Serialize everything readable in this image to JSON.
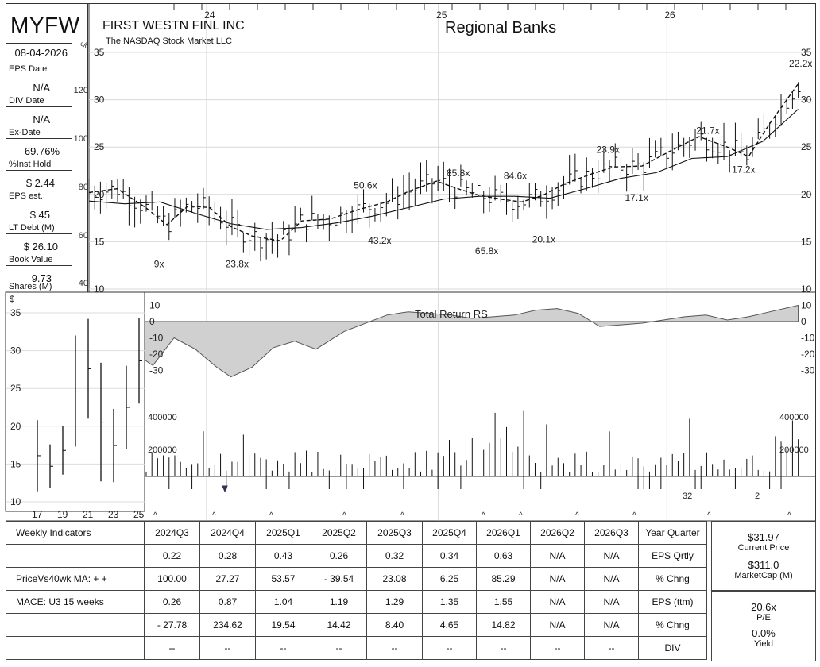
{
  "header": {
    "ticker": "MYFW",
    "company": "FIRST WESTN FINL INC",
    "exchange": "The NASDAQ Stock Market LLC",
    "industry": "Regional Banks"
  },
  "left_panel": [
    {
      "value": "08-04-2026",
      "label": "EPS Date"
    },
    {
      "value": "N/A",
      "label": "DIV Date"
    },
    {
      "value": "N/A",
      "label": "Ex-Date"
    },
    {
      "value": "69.76%",
      "label": "%Inst Hold"
    },
    {
      "value": "$ 2.44",
      "label": "EPS est."
    },
    {
      "value": "$ 45",
      "label": "LT Debt (M)"
    },
    {
      "value": "$ 26.10",
      "label": "Book Value"
    },
    {
      "value": "9.73",
      "label": "Shares (M)"
    }
  ],
  "pct_axis": {
    "symbol": "%",
    "ticks": [
      "120",
      "100",
      "80",
      "60",
      "40"
    ]
  },
  "chart_data": [
    {
      "type": "line",
      "title": "",
      "x_labels": [
        "24",
        "25",
        "26"
      ],
      "ylim": [
        10,
        35
      ],
      "y_ticks": [
        35,
        30,
        25,
        20,
        15,
        10
      ],
      "pe_labels": [
        {
          "text": "9x",
          "x": 0.1,
          "y": 12.3
        },
        {
          "text": "23.8x",
          "x": 0.2,
          "y": 12.3
        },
        {
          "text": "50.6x",
          "x": 0.38,
          "y": 20.6
        },
        {
          "text": "43.2x",
          "x": 0.4,
          "y": 14.8
        },
        {
          "text": "85.8x",
          "x": 0.51,
          "y": 21.9
        },
        {
          "text": "65.8x",
          "x": 0.55,
          "y": 13.7
        },
        {
          "text": "84.6x",
          "x": 0.59,
          "y": 21.6
        },
        {
          "text": "20.1x",
          "x": 0.63,
          "y": 14.9
        },
        {
          "text": "23.9x",
          "x": 0.72,
          "y": 24.4
        },
        {
          "text": "17.1x",
          "x": 0.76,
          "y": 19.3
        },
        {
          "text": "21.7x",
          "x": 0.86,
          "y": 26.4
        },
        {
          "text": "17.2x",
          "x": 0.91,
          "y": 22.3
        },
        {
          "text": "22.2x",
          "x": 0.99,
          "y": 33.5
        }
      ],
      "series": [
        {
          "name": "",
          "style": "dashed",
          "x": [
            0.0,
            0.04,
            0.08,
            0.11,
            0.14,
            0.17,
            0.2,
            0.23,
            0.27,
            0.3,
            0.34,
            0.38,
            0.42,
            0.45,
            0.49,
            0.52,
            0.55,
            0.58,
            0.61,
            0.64,
            0.67,
            0.71,
            0.74,
            0.78,
            0.82,
            0.86,
            0.9,
            0.93,
            0.96,
            1.0
          ],
          "values": [
            20.2,
            20.6,
            18.6,
            16.8,
            18.8,
            18.6,
            16.6,
            15.6,
            15.1,
            17.2,
            17.4,
            18.4,
            19.2,
            20.3,
            21.4,
            20.6,
            19.9,
            19.5,
            19.2,
            19.9,
            21.1,
            22.2,
            22.9,
            23.0,
            24.6,
            26.1,
            25.0,
            24.0,
            27.5,
            31.7
          ]
        },
        {
          "name": "",
          "style": "solid",
          "x": [
            0.0,
            0.05,
            0.1,
            0.15,
            0.2,
            0.25,
            0.3,
            0.35,
            0.4,
            0.45,
            0.5,
            0.55,
            0.6,
            0.65,
            0.7,
            0.75,
            0.8,
            0.85,
            0.9,
            0.95,
            1.0
          ],
          "values": [
            19.3,
            19.0,
            19.2,
            18.0,
            16.9,
            16.3,
            16.5,
            17.0,
            17.7,
            18.6,
            19.5,
            19.8,
            19.8,
            19.6,
            20.6,
            21.7,
            22.3,
            23.8,
            24.0,
            25.6,
            29.0
          ]
        }
      ]
    },
    {
      "type": "area",
      "title": "Total Return RS",
      "ylim": [
        -40,
        15
      ],
      "y_ticks": [
        10,
        0,
        -10,
        -20,
        -30
      ],
      "x": [
        0.0,
        0.04,
        0.06,
        0.09,
        0.12,
        0.15,
        0.18,
        0.2,
        0.23,
        0.26,
        0.29,
        0.32,
        0.36,
        0.39,
        0.42,
        0.45,
        0.48,
        0.51,
        0.54,
        0.57,
        0.6,
        0.63,
        0.66,
        0.69,
        0.72,
        0.75,
        0.78,
        0.81,
        0.84,
        0.87,
        0.9,
        0.93,
        0.96,
        1.0
      ],
      "values": [
        -22,
        -33,
        -18,
        -27,
        -10,
        -17,
        -28,
        -34,
        -28,
        -16,
        -12,
        -17,
        -6,
        -1,
        4,
        6,
        5,
        4,
        2,
        3,
        4,
        7,
        8,
        5,
        -3,
        -2,
        -1,
        1,
        3,
        4,
        1,
        3,
        6,
        10
      ]
    },
    {
      "type": "bar",
      "title": "",
      "y_ticks": [
        400000,
        200000
      ],
      "volume_markers": [
        "32",
        "2"
      ]
    },
    {
      "type": "bar",
      "title": "",
      "x_labels": [
        "17",
        "19",
        "21",
        "23",
        "25"
      ],
      "y_label": "$",
      "ylim": [
        10,
        36
      ],
      "y_ticks": [
        35,
        30,
        25,
        20,
        15,
        10
      ],
      "bars": [
        {
          "x": 17,
          "high": 20.8,
          "low": 11.4
        },
        {
          "x": 18,
          "high": 17.6,
          "low": 11.8
        },
        {
          "x": 19,
          "high": 20.0,
          "low": 13.6
        },
        {
          "x": 20,
          "high": 32.0,
          "low": 17.3
        },
        {
          "x": 21,
          "high": 34.2,
          "low": 21.0
        },
        {
          "x": 22,
          "high": 28.4,
          "low": 12.7
        },
        {
          "x": 23,
          "high": 22.3,
          "low": 12.6
        },
        {
          "x": 24,
          "high": 28.0,
          "low": 17.0
        },
        {
          "x": 25,
          "high": 34.3,
          "low": 23.0
        }
      ]
    }
  ],
  "indicators": {
    "columns": [
      "2024Q3",
      "2024Q4",
      "2025Q1",
      "2025Q2",
      "2025Q3",
      "2025Q4",
      "2026Q1",
      "2026Q2",
      "2026Q3"
    ],
    "year_quarter_label": "Year Quarter",
    "rows": [
      {
        "left": "Weekly Indicators",
        "cells": [],
        "right": ""
      },
      {
        "left": "",
        "cells": [
          "0.22",
          "0.28",
          "0.43",
          "0.26",
          "0.32",
          "0.34",
          "0.63",
          "N/A",
          "N/A"
        ],
        "right": "EPS Qrtly"
      },
      {
        "left": "PriceVs40wk MA:  + +",
        "cells": [
          "100.00",
          "27.27",
          "53.57",
          "- 39.54",
          "23.08",
          "6.25",
          "85.29",
          "N/A",
          "N/A"
        ],
        "right": "% Chng"
      },
      {
        "left": "MACE: U3  15 weeks",
        "cells": [
          "0.26",
          "0.87",
          "1.04",
          "1.19",
          "1.29",
          "1.35",
          "1.55",
          "N/A",
          "N/A"
        ],
        "right": "EPS (ttm)"
      },
      {
        "left": "",
        "cells": [
          "- 27.78",
          "234.62",
          "19.54",
          "14.42",
          "8.40",
          "4.65",
          "14.82",
          "N/A",
          "N/A"
        ],
        "right": "% Chng"
      },
      {
        "left": "",
        "cells": [
          "--",
          "--",
          "--",
          "--",
          "--",
          "--",
          "--",
          "--",
          "--"
        ],
        "right": "DIV"
      }
    ]
  },
  "summary": [
    {
      "value": "$31.97",
      "label": "Current Price"
    },
    {
      "value": "$311.0",
      "label": "MarketCap (M)"
    },
    {
      "value": "20.6x",
      "label": "P/E"
    },
    {
      "value": "0.0%",
      "label": "Yield"
    }
  ]
}
